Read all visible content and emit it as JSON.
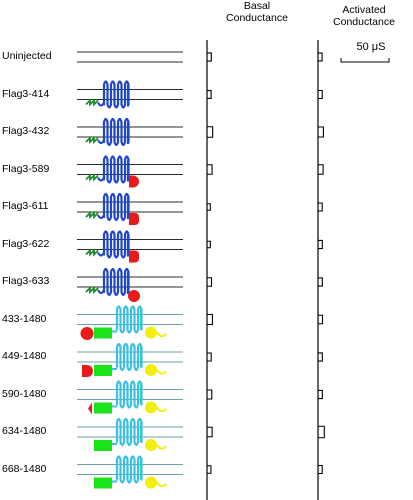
{
  "headers": {
    "basal": "Basal\nConductance",
    "activated": "Activated\nConductance"
  },
  "scale_bar": {
    "label": "50 μS"
  },
  "rows": [
    {
      "label": "Uninjected",
      "construct": "none",
      "basal_bar": 0.22,
      "activated_bar": 0.18
    },
    {
      "label": "Flag3-414",
      "construct": "flag-a",
      "basal_bar": 0.18,
      "activated_bar": 0.2
    },
    {
      "label": "Flag3-432",
      "construct": "flag-a",
      "basal_bar": 0.45,
      "activated_bar": 0.4
    },
    {
      "label": "Flag3-589",
      "construct": "flag-b-semicircle",
      "basal_bar": 0.35,
      "activated_bar": 0.35
    },
    {
      "label": "Flag3-611",
      "construct": "flag-b-square",
      "basal_bar": 0.05,
      "activated_bar": 0.2
    },
    {
      "label": "Flag3-622",
      "construct": "flag-b-square",
      "basal_bar": 0.05,
      "activated_bar": 0.22
    },
    {
      "label": "Flag3-633",
      "construct": "flag-b-circle",
      "basal_bar": 0.25,
      "activated_bar": 0.22
    },
    {
      "label": "433-1480",
      "construct": "full-circle-rect",
      "basal_bar": 0.4,
      "activated_bar": 0.25
    },
    {
      "label": "449-1480",
      "construct": "full-half-rect",
      "basal_bar": 0.2,
      "activated_bar": 0.22
    },
    {
      "label": "590-1480",
      "construct": "full-triangle-rect",
      "basal_bar": 0.3,
      "activated_bar": 0.22
    },
    {
      "label": "634-1480",
      "construct": "full-rect",
      "basal_bar": 0.35,
      "activated_bar": 0.55
    },
    {
      "label": "668-1480",
      "construct": "full-rect",
      "basal_bar": 0.15,
      "activated_bar": 0.2
    }
  ],
  "colors": {
    "dark_blue": "#1f45c9",
    "light_blue": "#39c0e3",
    "green_flag": "#1f8a2d",
    "red": "#e81a1a",
    "green": "#19e319",
    "yellow": "#f2ee10",
    "line": "#2b2b2b",
    "line_light": "#6fa0a8"
  }
}
